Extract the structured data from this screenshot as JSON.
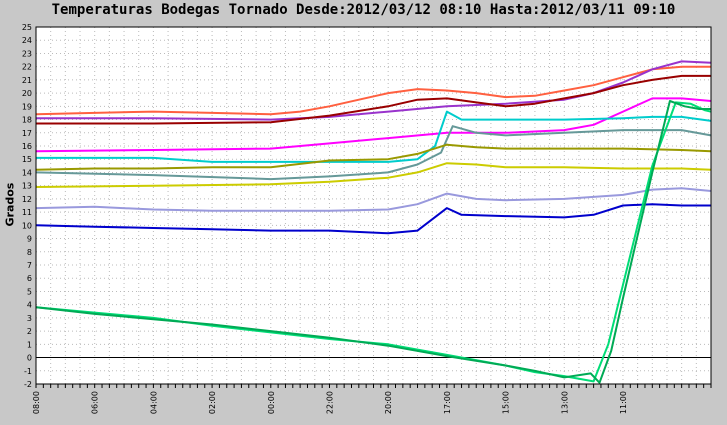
{
  "chart_data": {
    "type": "line",
    "title": "Temperaturas Bodegas Tornado Desde:2012/03/12 08:10 Hasta:2012/03/11 09:10",
    "xlabel": "",
    "ylabel": "Grados",
    "ylim": [
      -2,
      25
    ],
    "yticks": [
      "-2",
      "-1",
      "0",
      "1",
      "2",
      "3",
      "4",
      "5",
      "6",
      "7",
      "8",
      "9",
      "10",
      "11",
      "12",
      "13",
      "14",
      "15",
      "16",
      "17",
      "18",
      "19",
      "20",
      "21",
      "22",
      "23",
      "24",
      "25"
    ],
    "xlim": [
      0,
      23
    ],
    "xticks": [
      {
        "x": 0,
        "label": "08:00"
      },
      {
        "x": 2,
        "label": "06:00"
      },
      {
        "x": 4,
        "label": "04:00"
      },
      {
        "x": 6,
        "label": "02:00"
      },
      {
        "x": 8,
        "label": "00:00"
      },
      {
        "x": 10,
        "label": "22:00"
      },
      {
        "x": 12,
        "label": "20:00"
      },
      {
        "x": 14,
        "label": "17:00"
      },
      {
        "x": 16,
        "label": "15:00"
      },
      {
        "x": 18,
        "label": "13:00"
      },
      {
        "x": 20,
        "label": "11:00"
      }
    ],
    "grid": true,
    "series": [
      {
        "color": "#ff6040",
        "points": [
          [
            0,
            18.4
          ],
          [
            2,
            18.5
          ],
          [
            4,
            18.6
          ],
          [
            6,
            18.5
          ],
          [
            8,
            18.4
          ],
          [
            9,
            18.6
          ],
          [
            10,
            19.0
          ],
          [
            11,
            19.5
          ],
          [
            12,
            20.0
          ],
          [
            13,
            20.3
          ],
          [
            14,
            20.2
          ],
          [
            15,
            20.0
          ],
          [
            16,
            19.7
          ],
          [
            17,
            19.8
          ],
          [
            18,
            20.2
          ],
          [
            19,
            20.6
          ],
          [
            20,
            21.2
          ],
          [
            21,
            21.8
          ],
          [
            22,
            22.0
          ],
          [
            23,
            22.0
          ]
        ]
      },
      {
        "color": "#9933cc",
        "points": [
          [
            0,
            18.1
          ],
          [
            4,
            18.1
          ],
          [
            8,
            18.0
          ],
          [
            10,
            18.2
          ],
          [
            12,
            18.6
          ],
          [
            14,
            19.0
          ],
          [
            16,
            19.2
          ],
          [
            18,
            19.5
          ],
          [
            19,
            20.0
          ],
          [
            20,
            20.8
          ],
          [
            21,
            21.8
          ],
          [
            22,
            22.4
          ],
          [
            23,
            22.3
          ]
        ]
      },
      {
        "color": "#990000",
        "points": [
          [
            0,
            17.7
          ],
          [
            4,
            17.7
          ],
          [
            8,
            17.8
          ],
          [
            10,
            18.3
          ],
          [
            12,
            19.0
          ],
          [
            13,
            19.5
          ],
          [
            14,
            19.6
          ],
          [
            15,
            19.3
          ],
          [
            16,
            19.0
          ],
          [
            17,
            19.2
          ],
          [
            18,
            19.6
          ],
          [
            19,
            20.0
          ],
          [
            20,
            20.6
          ],
          [
            21,
            21.0
          ],
          [
            22,
            21.3
          ],
          [
            23,
            21.3
          ]
        ]
      },
      {
        "color": "#ff00ff",
        "points": [
          [
            0,
            15.6
          ],
          [
            4,
            15.7
          ],
          [
            8,
            15.8
          ],
          [
            10,
            16.2
          ],
          [
            12,
            16.6
          ],
          [
            14,
            17.0
          ],
          [
            16,
            17.0
          ],
          [
            18,
            17.2
          ],
          [
            19,
            17.6
          ],
          [
            20,
            18.6
          ],
          [
            21,
            19.6
          ],
          [
            22,
            19.6
          ],
          [
            23,
            19.4
          ]
        ]
      },
      {
        "color": "#00cccc",
        "points": [
          [
            0,
            15.1
          ],
          [
            4,
            15.1
          ],
          [
            6,
            14.8
          ],
          [
            10,
            14.8
          ],
          [
            12,
            14.8
          ],
          [
            13,
            15.0
          ],
          [
            13.6,
            16.0
          ],
          [
            14,
            18.6
          ],
          [
            14.5,
            18.0
          ],
          [
            16,
            18.0
          ],
          [
            18,
            18.0
          ],
          [
            20,
            18.1
          ],
          [
            21,
            18.2
          ],
          [
            22,
            18.2
          ],
          [
            23,
            17.9
          ]
        ]
      },
      {
        "color": "#669999",
        "points": [
          [
            0,
            14.0
          ],
          [
            4,
            13.8
          ],
          [
            8,
            13.5
          ],
          [
            10,
            13.7
          ],
          [
            12,
            14.0
          ],
          [
            13,
            14.6
          ],
          [
            13.8,
            15.5
          ],
          [
            14.2,
            17.5
          ],
          [
            15,
            17.0
          ],
          [
            16,
            16.8
          ],
          [
            18,
            17.0
          ],
          [
            20,
            17.2
          ],
          [
            21,
            17.2
          ],
          [
            22,
            17.2
          ],
          [
            23,
            16.8
          ]
        ]
      },
      {
        "color": "#999900",
        "points": [
          [
            0,
            14.2
          ],
          [
            2,
            14.3
          ],
          [
            4,
            14.3
          ],
          [
            6,
            14.4
          ],
          [
            8,
            14.4
          ],
          [
            10,
            14.9
          ],
          [
            12,
            15.0
          ],
          [
            13,
            15.4
          ],
          [
            14,
            16.1
          ],
          [
            15,
            15.9
          ],
          [
            16,
            15.8
          ],
          [
            18,
            15.8
          ],
          [
            20,
            15.8
          ],
          [
            22,
            15.7
          ],
          [
            23,
            15.6
          ]
        ]
      },
      {
        "color": "#cccc00",
        "points": [
          [
            0,
            12.9
          ],
          [
            4,
            13.0
          ],
          [
            8,
            13.1
          ],
          [
            10,
            13.3
          ],
          [
            12,
            13.6
          ],
          [
            13,
            14.0
          ],
          [
            14,
            14.7
          ],
          [
            15,
            14.6
          ],
          [
            16,
            14.4
          ],
          [
            18,
            14.4
          ],
          [
            20,
            14.3
          ],
          [
            22,
            14.3
          ],
          [
            23,
            14.2
          ]
        ]
      },
      {
        "color": "#9999dd",
        "points": [
          [
            0,
            11.3
          ],
          [
            2,
            11.4
          ],
          [
            4,
            11.2
          ],
          [
            6,
            11.1
          ],
          [
            8,
            11.1
          ],
          [
            10,
            11.1
          ],
          [
            12,
            11.2
          ],
          [
            13,
            11.6
          ],
          [
            14,
            12.4
          ],
          [
            15,
            12.0
          ],
          [
            16,
            11.9
          ],
          [
            18,
            12.0
          ],
          [
            20,
            12.3
          ],
          [
            21,
            12.7
          ],
          [
            22,
            12.8
          ],
          [
            23,
            12.6
          ]
        ]
      },
      {
        "color": "#0000cc",
        "points": [
          [
            0,
            10.0
          ],
          [
            2,
            9.9
          ],
          [
            4,
            9.8
          ],
          [
            6,
            9.7
          ],
          [
            8,
            9.6
          ],
          [
            10,
            9.6
          ],
          [
            12,
            9.4
          ],
          [
            13,
            9.6
          ],
          [
            14,
            11.3
          ],
          [
            14.5,
            10.8
          ],
          [
            16,
            10.7
          ],
          [
            18,
            10.6
          ],
          [
            19,
            10.8
          ],
          [
            20,
            11.5
          ],
          [
            21,
            11.6
          ],
          [
            22,
            11.5
          ],
          [
            23,
            11.5
          ]
        ]
      },
      {
        "color": "#00dd77",
        "points": [
          [
            0,
            3.8
          ],
          [
            2,
            3.4
          ],
          [
            4,
            3.0
          ],
          [
            6,
            2.4
          ],
          [
            8,
            1.9
          ],
          [
            10,
            1.4
          ],
          [
            12,
            1.0
          ],
          [
            14,
            0.2
          ],
          [
            16,
            -0.6
          ],
          [
            17,
            -1.1
          ],
          [
            18,
            -1.4
          ],
          [
            19,
            -1.8
          ],
          [
            19.5,
            1.0
          ],
          [
            20,
            5.5
          ],
          [
            21,
            14.5
          ],
          [
            21.8,
            19.3
          ],
          [
            22.3,
            19.2
          ],
          [
            22.8,
            18.7
          ],
          [
            23,
            18.6
          ]
        ]
      },
      {
        "color": "#00aa55",
        "points": [
          [
            0,
            3.8
          ],
          [
            2,
            3.3
          ],
          [
            4,
            2.9
          ],
          [
            6,
            2.5
          ],
          [
            8,
            2.0
          ],
          [
            10,
            1.5
          ],
          [
            12,
            0.9
          ],
          [
            14,
            0.1
          ],
          [
            16,
            -0.6
          ],
          [
            17,
            -1.0
          ],
          [
            18,
            -1.5
          ],
          [
            18.9,
            -1.2
          ],
          [
            19.2,
            -1.9
          ],
          [
            19.6,
            0.5
          ],
          [
            20,
            4.5
          ],
          [
            21,
            14.0
          ],
          [
            21.6,
            19.4
          ],
          [
            22.1,
            19.0
          ],
          [
            22.6,
            18.8
          ],
          [
            23,
            18.8
          ]
        ]
      }
    ]
  }
}
